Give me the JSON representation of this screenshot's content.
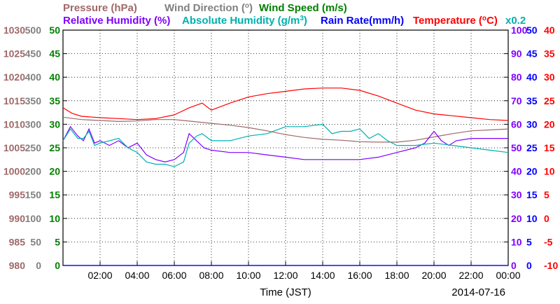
{
  "chart_data": {
    "type": "line",
    "date": "2014-07-16",
    "xlabel": "Time (JST)",
    "x_ticks": [
      "02:00",
      "04:00",
      "06:00",
      "08:00",
      "10:00",
      "12:00",
      "14:00",
      "16:00",
      "18:00",
      "20:00",
      "22:00",
      "00:00"
    ],
    "x_range_hours": [
      0,
      24
    ],
    "grid": true,
    "legend": {
      "row1": [
        {
          "text": "Pressure (hPa)",
          "color": "#a06868"
        },
        {
          "text": "Wind Direction (",
          "sup": "o",
          "tail": ")",
          "color": "#808080"
        },
        {
          "text": "Wind Speed (m/s)",
          "color": "#008000"
        }
      ],
      "row2": [
        {
          "text": "Relative Humidity (%)",
          "color": "#8000ff"
        },
        {
          "text": "Absolute Humidity (g/m",
          "sup": "3",
          "tail": ")",
          "color": "#00b0b0"
        },
        {
          "text": "Rain Rate(mm/h)",
          "color": "#0000ff"
        },
        {
          "text": "Temperature (",
          "sup": "o",
          "tail": "C)",
          "color": "#ff0000"
        }
      ],
      "note": {
        "text": "x0.2",
        "color": "#00b0b0"
      }
    },
    "axes": {
      "pressure": {
        "color": "#a06868",
        "range": [
          980,
          1030
        ],
        "ticks": [
          "1030",
          "1025",
          "1020",
          "1015",
          "1010",
          "1005",
          "1000",
          "995",
          "990",
          "985",
          "980"
        ]
      },
      "wind_direction": {
        "color": "#808080",
        "range": [
          0,
          500
        ],
        "ticks": [
          "500",
          "450",
          "400",
          "350",
          "300",
          "250",
          "200",
          "150",
          "100",
          "50",
          "0"
        ]
      },
      "wind_speed": {
        "color": "#008000",
        "range": [
          0,
          50
        ],
        "ticks": [
          "50",
          "45",
          "40",
          "35",
          "30",
          "25",
          "20",
          "15",
          "10",
          "5",
          "0"
        ]
      },
      "relative_humidity": {
        "color": "#8000ff",
        "range": [
          0,
          100
        ],
        "ticks": [
          "100",
          "90",
          "80",
          "70",
          "60",
          "50",
          "40",
          "30",
          "20",
          "10",
          "0"
        ]
      },
      "rain_rate": {
        "color": "#0000ff",
        "range": [
          0,
          50
        ],
        "ticks": [
          "50",
          "45",
          "40",
          "35",
          "30",
          "25",
          "20",
          "15",
          "10",
          "5",
          "0"
        ]
      },
      "temperature": {
        "color": "#ff0000",
        "range": [
          -10,
          40
        ],
        "ticks": [
          "40",
          "35",
          "30",
          "25",
          "20",
          "15",
          "10",
          "5",
          "0",
          "-5",
          "-10"
        ]
      }
    },
    "series": [
      {
        "name": "Temperature",
        "color": "#ff0000",
        "axis": "temperature",
        "x": [
          0,
          0.5,
          1,
          2,
          3,
          4,
          5,
          6,
          6.8,
          7.5,
          8,
          9,
          10,
          11,
          12,
          13,
          14,
          15,
          16,
          17,
          18,
          19,
          20,
          21,
          22,
          23,
          24
        ],
        "y": [
          23.5,
          22.3,
          21.7,
          21.4,
          21.2,
          21.0,
          21.2,
          22.0,
          23.5,
          24.5,
          23.0,
          24.5,
          25.8,
          26.5,
          27.0,
          27.5,
          27.7,
          27.7,
          27.2,
          26.0,
          24.5,
          23.0,
          22.2,
          21.8,
          21.4,
          21.0,
          20.8
        ]
      },
      {
        "name": "Pressure",
        "color": "#a06868",
        "axis": "pressure",
        "x": [
          0,
          1,
          2,
          3,
          4,
          5,
          6,
          7,
          8,
          9,
          10,
          11,
          12,
          13,
          14,
          15,
          16,
          17,
          18,
          19,
          20,
          21,
          22,
          23,
          24
        ],
        "y": [
          1011.5,
          1011.0,
          1010.8,
          1010.6,
          1010.7,
          1011.0,
          1011.0,
          1010.6,
          1010.2,
          1009.8,
          1009.3,
          1008.6,
          1007.8,
          1007.2,
          1006.8,
          1006.6,
          1006.3,
          1006.2,
          1006.2,
          1006.6,
          1007.3,
          1008.0,
          1008.6,
          1008.8,
          1009.0
        ]
      },
      {
        "name": "Relative Humidity",
        "color": "#8000ff",
        "axis": "relative_humidity",
        "x": [
          0,
          0.4,
          0.8,
          1.1,
          1.4,
          1.7,
          2.0,
          2.5,
          3.0,
          3.5,
          4.0,
          4.5,
          5.0,
          5.5,
          6.0,
          6.5,
          6.8,
          7.2,
          7.6,
          8.0,
          9,
          10,
          11,
          12,
          13,
          14,
          15,
          16,
          17,
          18,
          19,
          19.5,
          20,
          20.4,
          20.8,
          21.2,
          22,
          23,
          24
        ],
        "y": [
          53,
          59,
          55,
          53,
          58,
          52,
          53,
          51,
          53,
          50,
          52,
          47,
          45,
          44,
          45,
          48,
          56,
          53,
          50,
          49,
          48,
          48,
          47,
          46,
          45,
          45,
          45,
          45,
          46,
          48,
          50,
          52,
          57,
          53,
          51,
          53,
          54,
          54,
          54
        ]
      },
      {
        "name": "Absolute Humidity",
        "color": "#00b0b0",
        "axis": "relative_humidity",
        "x": [
          0,
          0.4,
          0.8,
          1.1,
          1.4,
          1.7,
          2.0,
          2.5,
          3.0,
          3.5,
          4.0,
          4.5,
          5.0,
          5.5,
          6.0,
          6.5,
          6.8,
          7.2,
          7.5,
          8.0,
          9,
          10,
          11,
          12,
          13,
          14,
          14.5,
          15,
          15.5,
          16,
          16.5,
          17,
          17.5,
          18,
          19,
          20,
          21,
          22,
          23,
          24
        ],
        "y": [
          53,
          58,
          54,
          54,
          57,
          51,
          52,
          53,
          54,
          50,
          48,
          44,
          43,
          43,
          42,
          44,
          52,
          55,
          56,
          53,
          53,
          55,
          56,
          59,
          59,
          60,
          56,
          57,
          57,
          58,
          54,
          56,
          53,
          51,
          51,
          52,
          51,
          50,
          49,
          48
        ]
      },
      {
        "name": "Rain Rate",
        "color": "#0000ff",
        "axis": "rain_rate",
        "x": [
          0,
          24
        ],
        "y": [
          0,
          0
        ]
      }
    ]
  }
}
